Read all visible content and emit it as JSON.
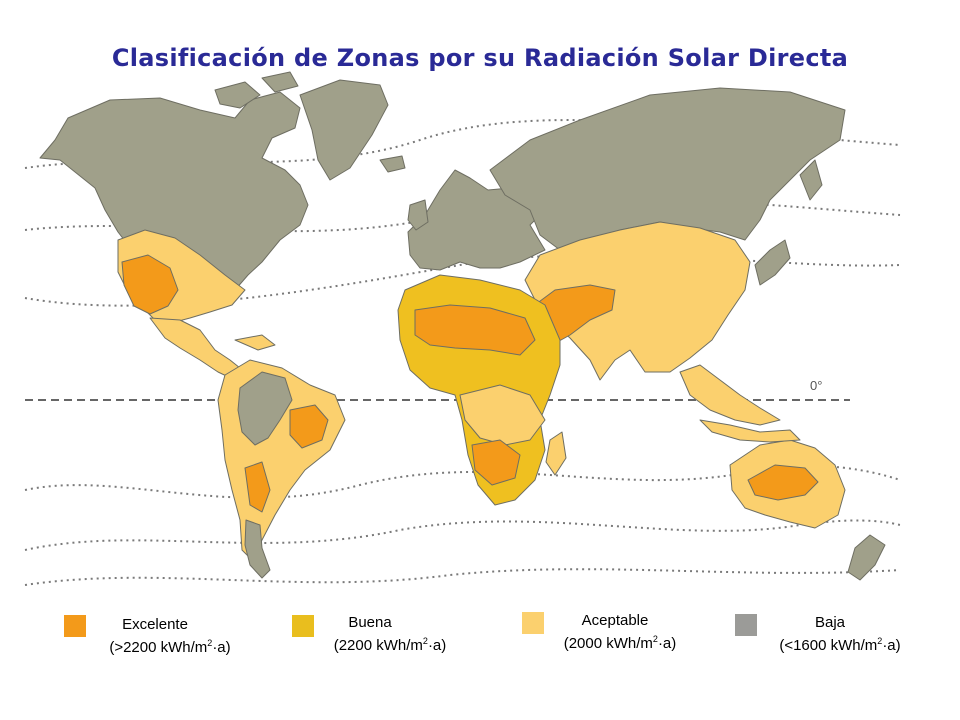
{
  "title": "Clasificación de Zonas por su Radiación Solar Directa",
  "equator_label": "0°",
  "colors": {
    "excelente": "#f39a1a",
    "buena": "#efc020",
    "aceptable": "#fbd06e",
    "baja": "#9e9e96",
    "land_baja": "#a0a08a",
    "coast": "#6e6e62",
    "isoline": "#777777"
  },
  "legend": [
    {
      "name": "Excelente",
      "range": "(>2200 kWh/m",
      "sup": "2",
      "suffix": "·a)",
      "color": "#f39a1a"
    },
    {
      "name": "Buena",
      "range": "(2200 kWh/m",
      "sup": "2",
      "suffix": "·a)",
      "color": "#e9be1e"
    },
    {
      "name": "Aceptable",
      "range": "(2000 kWh/m",
      "sup": "2",
      "suffix": "·a)",
      "color": "#fbd06e"
    },
    {
      "name": "Baja",
      "range": "(<1600 kWh/m",
      "sup": "2",
      "suffix": "·a)",
      "color": "#9b9b98"
    }
  ]
}
